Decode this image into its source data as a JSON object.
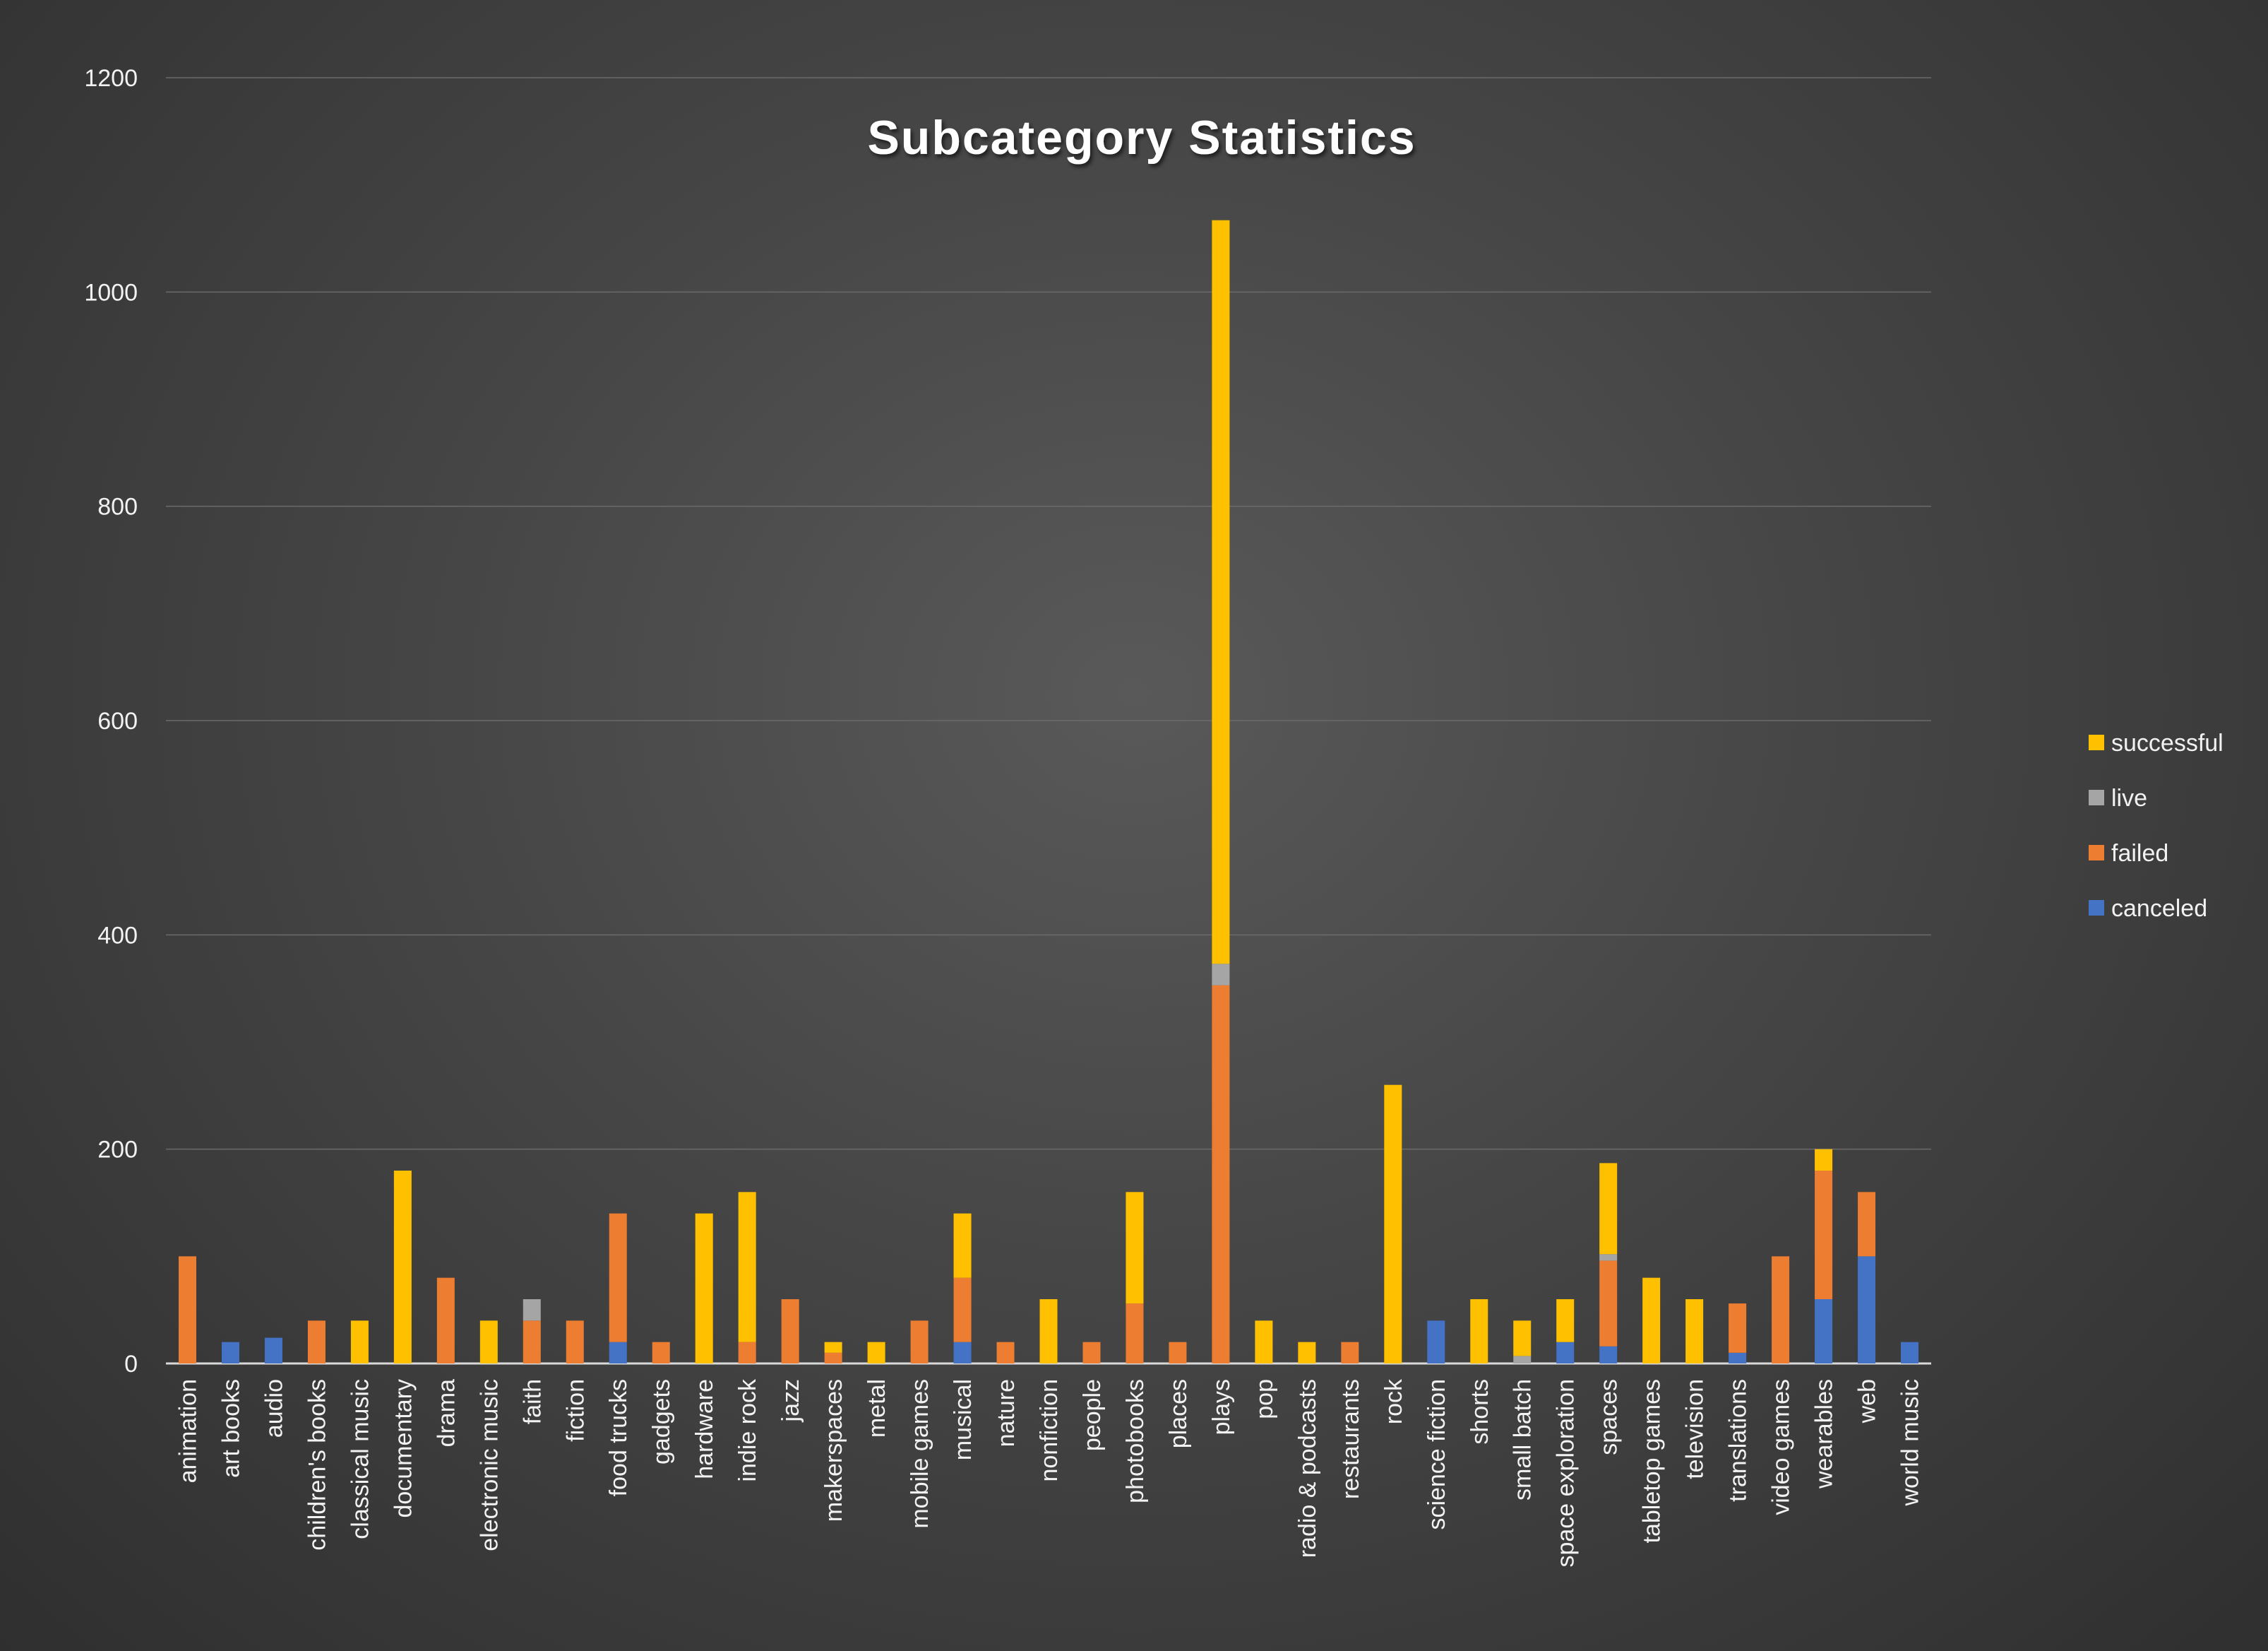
{
  "chart_data": {
    "type": "bar",
    "stacked": true,
    "title": "Subcategory Statistics",
    "xlabel": "",
    "ylabel": "",
    "ylim": [
      0,
      1200
    ],
    "yticks": [
      0,
      200,
      400,
      600,
      800,
      1000,
      1200
    ],
    "grid": true,
    "legend_position": "right",
    "categories": [
      "animation",
      "art books",
      "audio",
      "children's books",
      "classical music",
      "documentary",
      "drama",
      "electronic music",
      "faith",
      "fiction",
      "food trucks",
      "gadgets",
      "hardware",
      "indie rock",
      "jazz",
      "makerspaces",
      "metal",
      "mobile games",
      "musical",
      "nature",
      "nonfiction",
      "people",
      "photobooks",
      "places",
      "plays",
      "pop",
      "radio & podcasts",
      "restaurants",
      "rock",
      "science fiction",
      "shorts",
      "small batch",
      "space exploration",
      "spaces",
      "tabletop games",
      "television",
      "translations",
      "video games",
      "wearables",
      "web",
      "world music"
    ],
    "series": [
      {
        "name": "canceled",
        "color": "#4472C4",
        "values": [
          0,
          20,
          24,
          0,
          0,
          0,
          0,
          0,
          0,
          0,
          20,
          0,
          0,
          0,
          0,
          0,
          0,
          0,
          20,
          0,
          0,
          0,
          0,
          0,
          0,
          0,
          0,
          0,
          0,
          40,
          0,
          0,
          20,
          16,
          0,
          0,
          10,
          0,
          60,
          100,
          20
        ]
      },
      {
        "name": "failed",
        "color": "#ED7D31",
        "values": [
          100,
          0,
          0,
          40,
          0,
          0,
          80,
          0,
          40,
          40,
          120,
          20,
          0,
          20,
          60,
          10,
          0,
          40,
          60,
          20,
          0,
          20,
          56,
          20,
          353,
          0,
          0,
          20,
          0,
          0,
          0,
          0,
          0,
          80,
          0,
          0,
          46,
          100,
          120,
          60,
          0
        ]
      },
      {
        "name": "live",
        "color": "#A5A5A5",
        "values": [
          0,
          0,
          0,
          0,
          0,
          0,
          0,
          0,
          20,
          0,
          0,
          0,
          0,
          0,
          0,
          0,
          0,
          0,
          0,
          0,
          0,
          0,
          0,
          0,
          20,
          0,
          0,
          0,
          0,
          0,
          0,
          7,
          0,
          6,
          0,
          0,
          0,
          0,
          0,
          0,
          0
        ]
      },
      {
        "name": "successful",
        "color": "#FFC000",
        "values": [
          0,
          0,
          0,
          0,
          40,
          180,
          0,
          40,
          0,
          0,
          0,
          0,
          140,
          140,
          0,
          10,
          20,
          0,
          60,
          0,
          60,
          0,
          104,
          0,
          694,
          40,
          20,
          0,
          260,
          0,
          60,
          33,
          40,
          85,
          80,
          60,
          0,
          0,
          20,
          0,
          0
        ]
      }
    ]
  }
}
